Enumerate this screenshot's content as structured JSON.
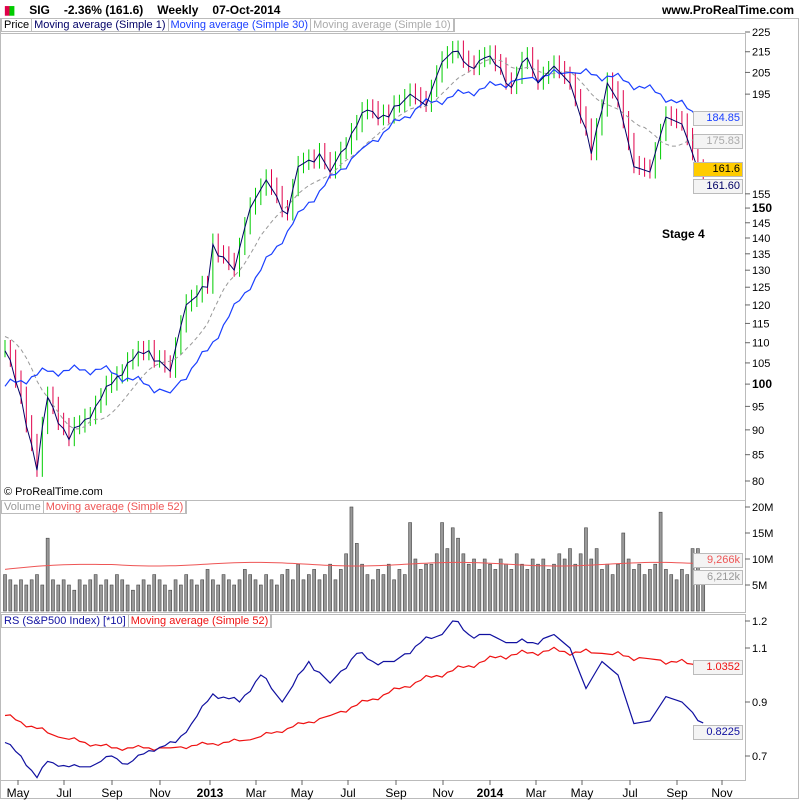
{
  "header": {
    "symbol": "SIG",
    "change": "-2.36% (161.6)",
    "period": "Weekly",
    "date": "07-Oct-2014",
    "site": "www.ProRealTime.com"
  },
  "price_legend": {
    "price": "Price",
    "ma1": "Moving average (Simple 1)",
    "ma30": "Moving average (Simple 30)",
    "ma10": "Moving average (Simple 10)"
  },
  "volume_legend": {
    "volume": "Volume",
    "ma52": "Moving average (Simple 52)"
  },
  "rs_legend": {
    "rs": "RS (S&P500 Index) [*10]",
    "ma52": "Moving average (Simple 52)"
  },
  "copyright": "© ProRealTime.com",
  "annotation": "Stage 4",
  "tags": {
    "ma30": "184.85",
    "ma10": "175.83",
    "last": "161.6",
    "ma1": "161.60",
    "vol_ma": "9,266k",
    "vol": "6,212k",
    "rs_ma": "1.0352",
    "rs": "0.8225"
  },
  "colors": {
    "up": "#00cc00",
    "down": "#e0004a",
    "ma1": "#000066",
    "ma30": "#1a3fff",
    "ma10": "#999999",
    "rs": "#1010a0",
    "rs_ma": "#ee1111",
    "vol_ma": "#ee5555",
    "last": "#ffcc00"
  },
  "chart_data": {
    "type": "line",
    "x_ticks": [
      "May",
      "Jul",
      "Sep",
      "Nov",
      "2013",
      "Mar",
      "May",
      "Jul",
      "Sep",
      "Nov",
      "2014",
      "Mar",
      "May",
      "Jul",
      "Sep",
      "Nov"
    ],
    "price": {
      "scale": "log",
      "ylim": [
        78,
        228
      ],
      "ticks": [
        80,
        85,
        90,
        95,
        100,
        105,
        110,
        115,
        120,
        125,
        130,
        135,
        140,
        145,
        150,
        155,
        195,
        205,
        215,
        225
      ],
      "close_keypoints": [
        [
          0,
          108
        ],
        [
          3,
          97
        ],
        [
          6,
          82
        ],
        [
          8,
          97
        ],
        [
          12,
          88
        ],
        [
          17,
          95
        ],
        [
          20,
          100
        ],
        [
          23,
          105
        ],
        [
          27,
          108
        ],
        [
          31,
          103
        ],
        [
          34,
          120
        ],
        [
          38,
          125
        ],
        [
          39,
          138
        ],
        [
          43,
          130
        ],
        [
          46,
          150
        ],
        [
          49,
          160
        ],
        [
          53,
          148
        ],
        [
          55,
          165
        ],
        [
          59,
          170
        ],
        [
          61,
          163
        ],
        [
          65,
          178
        ],
        [
          68,
          188
        ],
        [
          72,
          185
        ],
        [
          76,
          195
        ],
        [
          79,
          190
        ],
        [
          82,
          210
        ],
        [
          84,
          215
        ],
        [
          87,
          208
        ],
        [
          90,
          212
        ],
        [
          93,
          207
        ],
        [
          95,
          198
        ],
        [
          98,
          212
        ],
        [
          100,
          200
        ],
        [
          103,
          208
        ],
        [
          106,
          200
        ],
        [
          110,
          170
        ],
        [
          113,
          200
        ],
        [
          115,
          192
        ],
        [
          118,
          165
        ],
        [
          121,
          163
        ],
        [
          124,
          185
        ],
        [
          127,
          182
        ],
        [
          129,
          170
        ],
        [
          131,
          161.6
        ]
      ],
      "ma30_keypoints": [
        [
          0,
          99.5
        ],
        [
          8,
          103
        ],
        [
          18,
          103.5
        ],
        [
          31,
          98
        ],
        [
          38,
          108
        ],
        [
          48,
          130
        ],
        [
          57,
          152
        ],
        [
          67,
          172
        ],
        [
          78,
          190
        ],
        [
          87,
          196
        ],
        [
          97,
          202
        ],
        [
          106,
          205
        ],
        [
          114,
          203
        ],
        [
          123,
          195
        ],
        [
          131,
          184.85
        ]
      ]
    },
    "volume": {
      "unit": "M",
      "ticks": [
        5,
        10,
        15,
        20
      ],
      "ma52": 9.266,
      "values": [
        7,
        6,
        5,
        6,
        5,
        6,
        7,
        5,
        14,
        6,
        5,
        6,
        5,
        4,
        6,
        5,
        6,
        7,
        5,
        6,
        5,
        7,
        6,
        5,
        4,
        5,
        6,
        5,
        7,
        6,
        5,
        4,
        6,
        5,
        7,
        6,
        5,
        6,
        8,
        6,
        5,
        7,
        6,
        5,
        6,
        8,
        7,
        6,
        5,
        7,
        6,
        5,
        7,
        8,
        6,
        9,
        6,
        7,
        8,
        6,
        7,
        9,
        6,
        8,
        11,
        20,
        13,
        9,
        7,
        6,
        8,
        7,
        9,
        6,
        8,
        7,
        17,
        10,
        8,
        9,
        9,
        11,
        17,
        12,
        16,
        14,
        11,
        9,
        10,
        8,
        10,
        9,
        8,
        10,
        9,
        8,
        11,
        9,
        8,
        10,
        9,
        10,
        8,
        9,
        11,
        10,
        12,
        9,
        11,
        16,
        10,
        12,
        8,
        9,
        7,
        9,
        15,
        10,
        8,
        9,
        7,
        8,
        9,
        19,
        8,
        7,
        6,
        8,
        7,
        12,
        12,
        6.2
      ]
    },
    "rs": {
      "ticks": [
        0.7,
        0.9,
        1.1,
        1.2
      ],
      "ylim": [
        0.6,
        1.22
      ],
      "keypoints": [
        [
          0,
          0.75
        ],
        [
          3,
          0.7
        ],
        [
          6,
          0.62
        ],
        [
          8,
          0.68
        ],
        [
          12,
          0.66
        ],
        [
          16,
          0.66
        ],
        [
          20,
          0.7
        ],
        [
          23,
          0.67
        ],
        [
          27,
          0.72
        ],
        [
          32,
          0.75
        ],
        [
          35,
          0.82
        ],
        [
          39,
          0.93
        ],
        [
          44,
          0.9
        ],
        [
          48,
          1.0
        ],
        [
          52,
          0.9
        ],
        [
          57,
          1.05
        ],
        [
          61,
          0.97
        ],
        [
          66,
          1.08
        ],
        [
          69,
          1.05
        ],
        [
          73,
          1.05
        ],
        [
          78,
          1.12
        ],
        [
          82,
          1.15
        ],
        [
          84,
          1.2
        ],
        [
          87,
          1.15
        ],
        [
          91,
          1.15
        ],
        [
          94,
          1.12
        ],
        [
          99,
          1.12
        ],
        [
          103,
          1.15
        ],
        [
          106,
          1.1
        ],
        [
          109,
          0.95
        ],
        [
          112,
          1.05
        ],
        [
          115,
          1.0
        ],
        [
          118,
          0.82
        ],
        [
          121,
          0.83
        ],
        [
          124,
          0.92
        ],
        [
          127,
          0.9
        ],
        [
          131,
          0.8225
        ]
      ],
      "ma52_keypoints": [
        [
          0,
          0.85
        ],
        [
          10,
          0.77
        ],
        [
          20,
          0.73
        ],
        [
          31,
          0.73
        ],
        [
          46,
          0.76
        ],
        [
          61,
          0.85
        ],
        [
          78,
          0.98
        ],
        [
          93,
          1.07
        ],
        [
          102,
          1.09
        ],
        [
          112,
          1.08
        ],
        [
          121,
          1.06
        ],
        [
          131,
          1.0352
        ]
      ]
    }
  }
}
